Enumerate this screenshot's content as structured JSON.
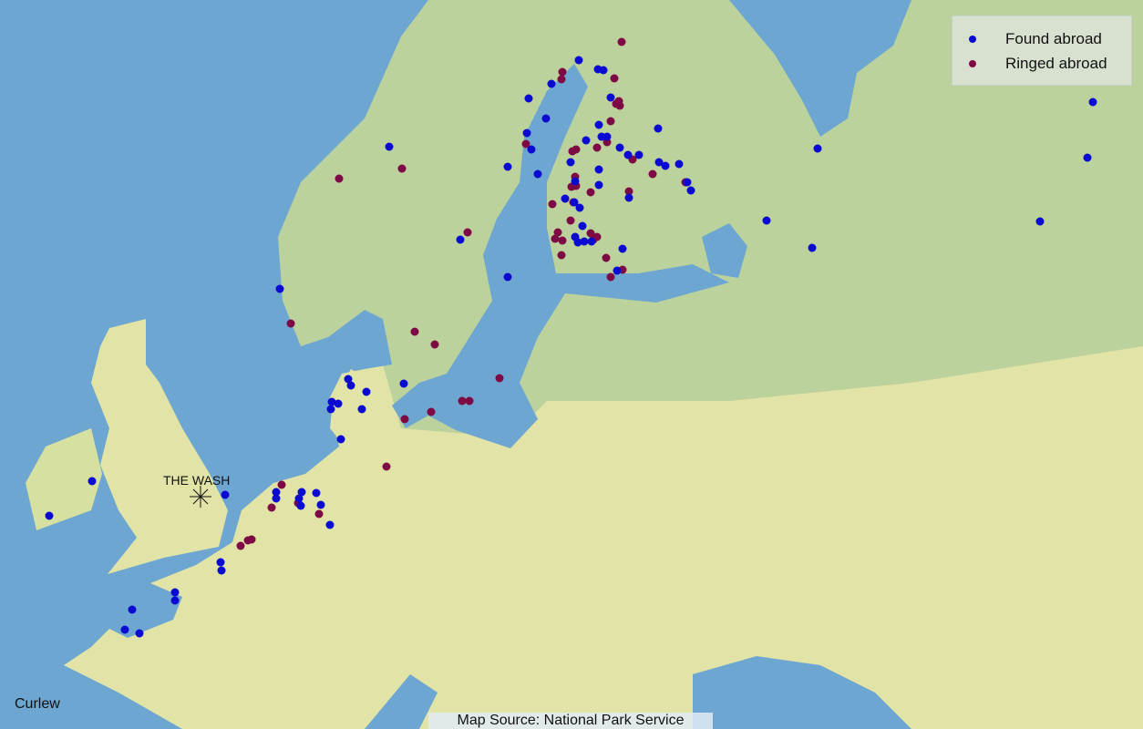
{
  "map": {
    "caption": "Curlew",
    "source": "Map Source: National Park Service",
    "site_label": "THE WASH",
    "colors": {
      "ocean": "#6ea6d2",
      "land": "#e2e3a6",
      "northern_land": "#bcd29c",
      "found_abroad": "#0a0ad0",
      "ringed_abroad": "#7e0a45"
    }
  },
  "legend": {
    "items": [
      {
        "label": "Found abroad",
        "color": "#0a0ad0"
      },
      {
        "label": "Ringed abroad",
        "color": "#7e0a45"
      }
    ]
  }
}
